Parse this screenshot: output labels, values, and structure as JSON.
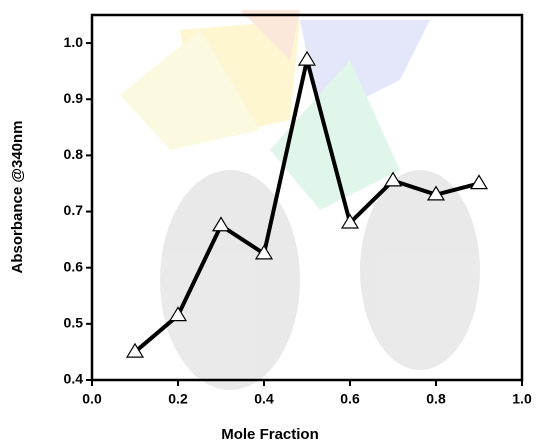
{
  "chart_data": {
    "type": "line",
    "xlabel": "Mole Fraction",
    "ylabel": "Absorbance @340nm",
    "x": [
      0.1,
      0.2,
      0.3,
      0.4,
      0.5,
      0.6,
      0.7,
      0.8,
      0.9
    ],
    "series": [
      {
        "color": "#000000",
        "values": [
          0.45,
          0.515,
          0.675,
          0.625,
          0.97,
          0.68,
          0.755,
          0.73,
          0.75
        ]
      }
    ],
    "xlim": [
      0,
      1
    ],
    "xticks": [
      {
        "value": 0,
        "label": "0.0"
      },
      0.2,
      0.4,
      0.6,
      0.8,
      {
        "value": 1,
        "label": "1.0"
      }
    ],
    "ylim": [
      0.4,
      1.05
    ],
    "yticks": [
      0.4,
      0.5,
      0.6,
      0.7,
      0.8,
      0.9,
      {
        "value": 1,
        "label": "1.0"
      }
    ],
    "marker": "triangle"
  }
}
